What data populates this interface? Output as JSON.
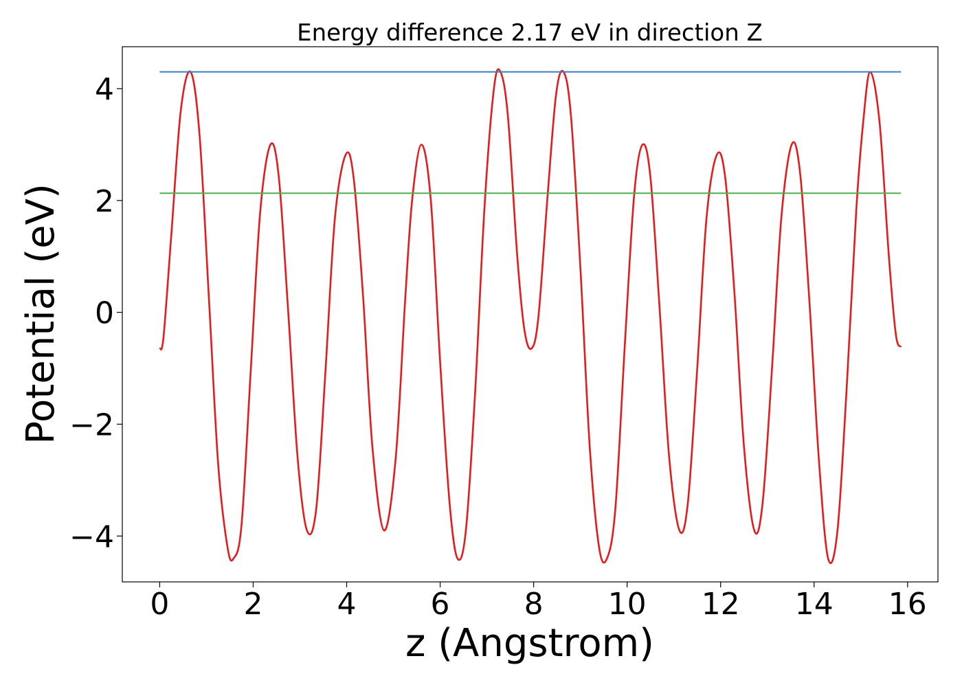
{
  "chart_data": {
    "type": "line",
    "title": "Energy difference 2.17 eV in direction Z",
    "xlabel": "z (Angstrom)",
    "ylabel": "Potential (eV)",
    "xlim": [
      -0.8,
      16.65
    ],
    "ylim": [
      -4.82,
      4.75
    ],
    "xticks": [
      0,
      2,
      4,
      6,
      8,
      10,
      12,
      14,
      16
    ],
    "yticks": [
      -4,
      -2,
      0,
      2,
      4
    ],
    "xtick_labels": [
      "0",
      "2",
      "4",
      "6",
      "8",
      "10",
      "12",
      "14",
      "16"
    ],
    "ytick_labels": [
      "−4",
      "−2",
      "0",
      "2",
      "4"
    ],
    "grid": false,
    "legend": "none",
    "series": [
      {
        "color": "#e41a1c",
        "x": [
          0.0,
          0.08,
          0.25,
          0.45,
          0.66,
          0.85,
          1.05,
          1.25,
          1.45,
          1.58,
          1.75,
          1.95,
          2.15,
          2.37,
          2.55,
          2.75,
          2.95,
          3.15,
          3.35,
          3.55,
          3.75,
          3.98,
          4.15,
          4.35,
          4.55,
          4.8,
          5.05,
          5.25,
          5.4,
          5.6,
          5.8,
          6.0,
          6.2,
          6.37,
          6.55,
          6.75,
          6.95,
          7.15,
          7.29,
          7.45,
          7.65,
          7.8,
          7.95,
          8.1,
          8.3,
          8.48,
          8.64,
          8.8,
          9.0,
          9.2,
          9.4,
          9.57,
          9.75,
          9.95,
          10.15,
          10.33,
          10.5,
          10.7,
          10.9,
          11.12,
          11.3,
          11.5,
          11.7,
          11.92,
          12.1,
          12.3,
          12.5,
          12.72,
          12.9,
          13.1,
          13.3,
          13.52,
          13.7,
          13.9,
          14.1,
          14.3,
          14.5,
          14.7,
          14.9,
          15.05,
          15.2,
          15.4,
          15.6,
          15.75,
          15.86
        ],
        "y": [
          -0.65,
          -0.45,
          1.4,
          3.6,
          4.3,
          3.2,
          0.3,
          -2.7,
          -4.2,
          -4.4,
          -3.8,
          -1.0,
          1.8,
          3.0,
          2.4,
          0.0,
          -2.6,
          -3.9,
          -3.5,
          -1.0,
          1.7,
          2.82,
          2.4,
          0.3,
          -2.4,
          -3.9,
          -2.6,
          0.2,
          2.0,
          3.0,
          2.0,
          -0.9,
          -3.4,
          -4.4,
          -3.9,
          -1.4,
          1.9,
          4.0,
          4.3,
          3.5,
          1.0,
          -0.3,
          -0.65,
          -0.1,
          2.1,
          3.9,
          4.3,
          3.5,
          0.8,
          -2.4,
          -4.2,
          -4.4,
          -3.5,
          -0.6,
          2.1,
          3.0,
          2.4,
          0.0,
          -2.6,
          -3.9,
          -3.4,
          -1.0,
          1.7,
          2.82,
          2.4,
          0.3,
          -2.4,
          -3.9,
          -3.4,
          -1.0,
          1.7,
          3.0,
          2.5,
          0.2,
          -2.6,
          -4.4,
          -3.9,
          -1.3,
          1.8,
          3.4,
          4.3,
          3.4,
          1.0,
          -0.4,
          -0.62
        ]
      },
      {
        "color": "#3a7ebf",
        "x": [
          0.0,
          15.86
        ],
        "y": [
          4.3,
          4.3
        ]
      },
      {
        "color": "#4daf4a",
        "x": [
          0.0,
          15.86
        ],
        "y": [
          2.13,
          2.13
        ]
      }
    ]
  }
}
